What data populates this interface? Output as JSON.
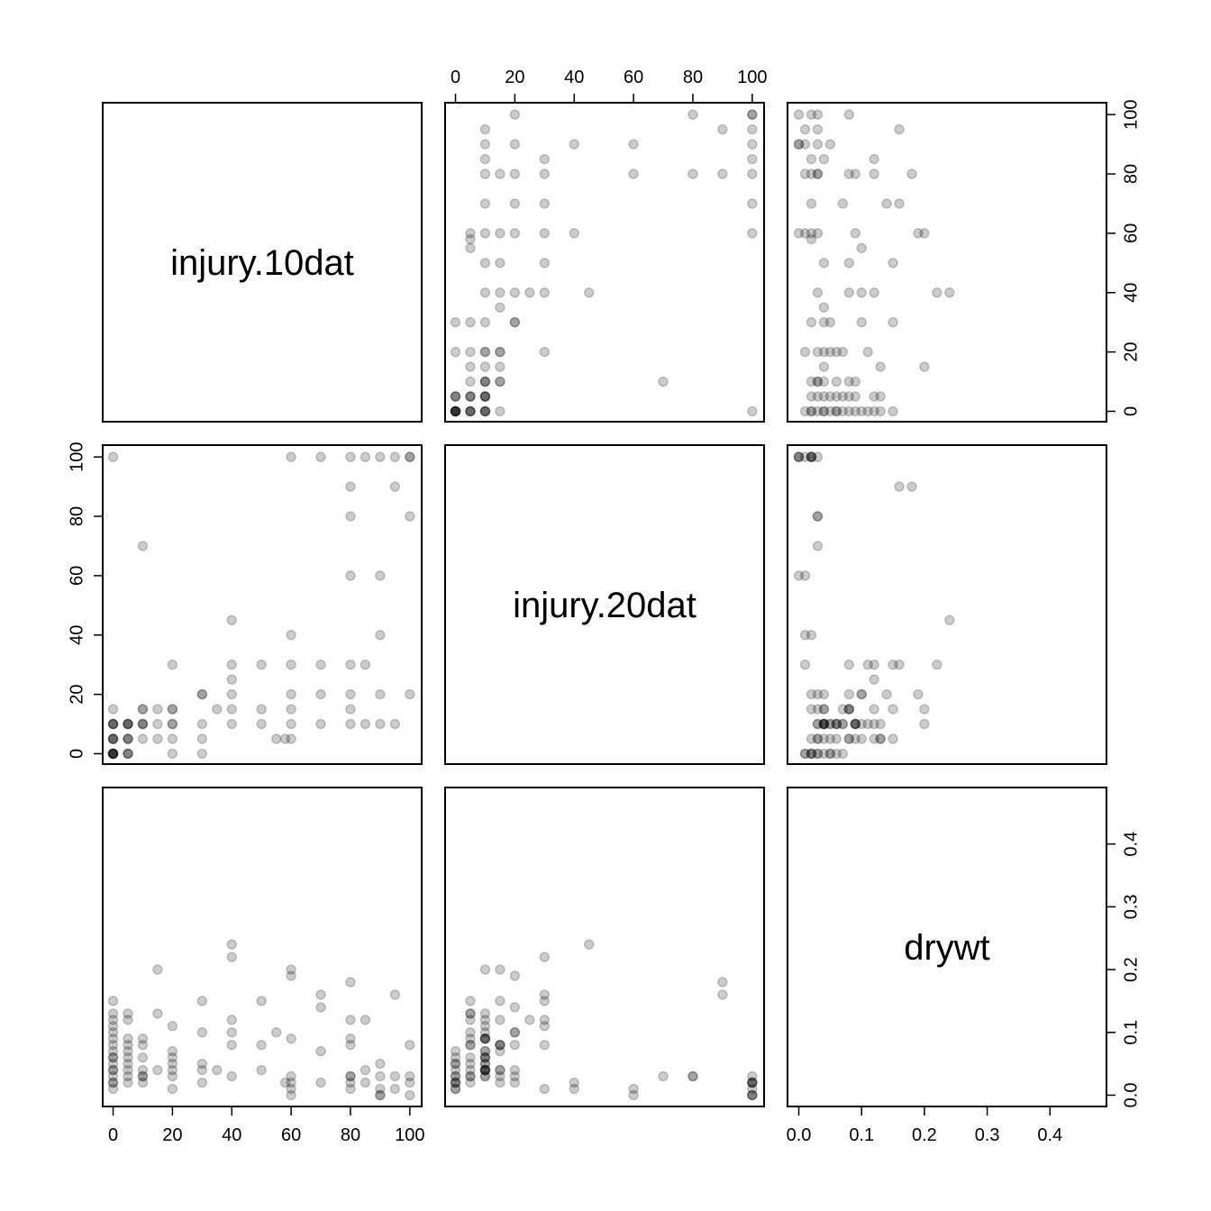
{
  "chart_data": {
    "type": "scatter",
    "subtype": "pairs-matrix",
    "variables": [
      "injury.10dat",
      "injury.20dat",
      "drywt"
    ],
    "ranges": {
      "injury.10dat": [
        -3.5,
        104
      ],
      "injury.20dat": [
        -3.5,
        104
      ],
      "drywt": [
        -0.018,
        0.49
      ]
    },
    "ticks": {
      "injury.10dat": [
        0,
        20,
        40,
        60,
        80,
        100
      ],
      "injury.20dat": [
        0,
        20,
        40,
        60,
        80,
        100
      ],
      "drywt": [
        0.0,
        0.1,
        0.2,
        0.3,
        0.4
      ]
    },
    "tick_labels": {
      "injury.10dat": [
        "0",
        "20",
        "40",
        "60",
        "80",
        "100"
      ],
      "injury.20dat": [
        "0",
        "20",
        "40",
        "60",
        "80",
        "100"
      ],
      "drywt": [
        "0.0",
        "0.1",
        "0.2",
        "0.3",
        "0.4"
      ]
    },
    "point_color": "#000000",
    "point_alpha": 0.2,
    "grid": false,
    "legend": "none",
    "observations": [
      [
        0,
        0,
        0.05
      ],
      [
        0,
        0,
        0.04
      ],
      [
        0,
        0,
        0.03
      ],
      [
        0,
        0,
        0.02
      ],
      [
        0,
        0,
        0.07
      ],
      [
        0,
        0,
        0.06
      ],
      [
        0,
        0,
        0.01
      ],
      [
        0,
        5,
        0.08
      ],
      [
        0,
        5,
        0.12
      ],
      [
        0,
        5,
        0.13
      ],
      [
        0,
        5,
        0.09
      ],
      [
        0,
        10,
        0.1
      ],
      [
        0,
        10,
        0.11
      ],
      [
        0,
        10,
        0.06
      ],
      [
        0,
        10,
        0.04
      ],
      [
        0,
        15,
        0.15
      ],
      [
        0,
        100,
        0.02
      ],
      [
        5,
        0,
        0.05
      ],
      [
        5,
        0,
        0.03
      ],
      [
        5,
        0,
        0.02
      ],
      [
        5,
        5,
        0.06
      ],
      [
        5,
        5,
        0.08
      ],
      [
        5,
        5,
        0.04
      ],
      [
        5,
        10,
        0.09
      ],
      [
        5,
        10,
        0.12
      ],
      [
        5,
        10,
        0.13
      ],
      [
        5,
        10,
        0.07
      ],
      [
        10,
        5,
        0.03
      ],
      [
        10,
        10,
        0.04
      ],
      [
        10,
        10,
        0.06
      ],
      [
        10,
        10,
        0.09
      ],
      [
        10,
        15,
        0.02
      ],
      [
        10,
        15,
        0.08
      ],
      [
        10,
        70,
        0.03
      ],
      [
        15,
        5,
        0.13
      ],
      [
        15,
        10,
        0.2
      ],
      [
        15,
        15,
        0.04
      ],
      [
        20,
        0,
        0.01
      ],
      [
        20,
        5,
        0.05
      ],
      [
        20,
        10,
        0.06
      ],
      [
        20,
        10,
        0.04
      ],
      [
        20,
        15,
        0.07
      ],
      [
        20,
        15,
        0.03
      ],
      [
        20,
        30,
        0.11
      ],
      [
        30,
        0,
        0.02
      ],
      [
        30,
        5,
        0.15
      ],
      [
        30,
        10,
        0.05
      ],
      [
        30,
        20,
        0.04
      ],
      [
        30,
        20,
        0.1
      ],
      [
        35,
        15,
        0.04
      ],
      [
        40,
        10,
        0.03
      ],
      [
        40,
        15,
        0.08
      ],
      [
        40,
        20,
        0.1
      ],
      [
        40,
        25,
        0.12
      ],
      [
        40,
        30,
        0.22
      ],
      [
        40,
        45,
        0.24
      ],
      [
        50,
        10,
        0.04
      ],
      [
        50,
        15,
        0.08
      ],
      [
        50,
        30,
        0.15
      ],
      [
        55,
        5,
        0.1
      ],
      [
        58,
        5,
        0.02
      ],
      [
        60,
        5,
        0.03
      ],
      [
        60,
        10,
        0.09
      ],
      [
        60,
        15,
        0.2
      ],
      [
        60,
        20,
        0.19
      ],
      [
        60,
        30,
        0.01
      ],
      [
        60,
        40,
        0.02
      ],
      [
        60,
        100,
        0.0
      ],
      [
        70,
        10,
        0.07
      ],
      [
        70,
        20,
        0.14
      ],
      [
        70,
        30,
        0.16
      ],
      [
        70,
        100,
        0.02
      ],
      [
        80,
        10,
        0.09
      ],
      [
        80,
        15,
        0.12
      ],
      [
        80,
        20,
        0.02
      ],
      [
        80,
        30,
        0.08
      ],
      [
        80,
        60,
        0.01
      ],
      [
        80,
        80,
        0.03
      ],
      [
        80,
        90,
        0.18
      ],
      [
        80,
        100,
        0.03
      ],
      [
        85,
        10,
        0.04
      ],
      [
        85,
        30,
        0.12
      ],
      [
        85,
        100,
        0.02
      ],
      [
        90,
        10,
        0.05
      ],
      [
        90,
        20,
        0.03
      ],
      [
        90,
        40,
        0.01
      ],
      [
        90,
        60,
        0.0
      ],
      [
        90,
        100,
        0.0
      ],
      [
        95,
        10,
        0.03
      ],
      [
        95,
        90,
        0.16
      ],
      [
        95,
        100,
        0.01
      ],
      [
        100,
        20,
        0.08
      ],
      [
        100,
        80,
        0.03
      ],
      [
        100,
        100,
        0.0
      ],
      [
        100,
        100,
        0.02
      ]
    ]
  }
}
